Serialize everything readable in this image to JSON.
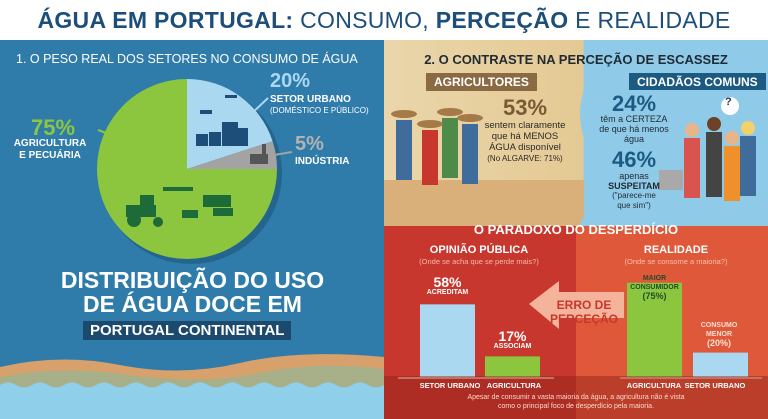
{
  "header": {
    "title_bold1": "ÁGUA EM PORTUGAL:",
    "title_light1": " CONSUMO,",
    "title_bold2": " PERCEÇÃO",
    "title_light2": " E REALIDADE"
  },
  "section1": {
    "heading": "1. O PESO REAL DOS SETORES NO CONSUMO DE ÁGUA",
    "urban": {
      "pct": "20%",
      "label": "SETOR URBANO",
      "sub": "(DOMÉSTICO E PÚBLICO)"
    },
    "industry": {
      "pct": "5%",
      "label": "INDÚSTRIA"
    },
    "agriculture": {
      "pct": "75%",
      "label1": "AGRICULTURA",
      "label2": "E PECUÁRIA"
    },
    "title1": "DISTRIBUIÇÃO DO USO",
    "title2": "DE ÁGUA DOCE EM",
    "title3": "PORTUGAL CONTINENTAL"
  },
  "section2": {
    "heading": "2. O CONTRASTE NA PERCEÇÃO DE ESCASSEZ",
    "farmers": {
      "label": "AGRICULTORES",
      "pct": "53%",
      "t1": "sentem claramente",
      "t2": "que há MENOS",
      "t3": "ÁGUA disponível",
      "note": "(No ALGARVE: 71%)"
    },
    "citizens": {
      "label": "CIDADÃOS COMUNS",
      "pct1": "24%",
      "t1": "têm a CERTEZA",
      "t2": "de que há menos",
      "t3": "água",
      "pct2": "46%",
      "t4": "apenas",
      "t5": "SUSPEITAM",
      "t6": "(\"parece-me",
      "t7": "que sim\")",
      "question": "?"
    }
  },
  "section3": {
    "heading": "O PARADOXO DO DESPERDÍCIO",
    "opinion": {
      "title": "OPINIÃO PÚBLICA",
      "sub": "(Onde se acha que se perde mais?)",
      "urban_pct": "58%",
      "urban_note": "ACREDITAM",
      "agri_pct": "17%",
      "agri_note": "ASSOCIAM",
      "x1": "SETOR URBANO",
      "x2": "AGRICULTURA"
    },
    "arrow": {
      "l1": "ERRO DE",
      "l2": "PERCEÇÃO"
    },
    "reality": {
      "title": "REALIDADE",
      "sub": "(Onde se consome a maioria?)",
      "agri_l1": "MAIOR",
      "agri_l2": "CONSUMIDOR",
      "agri_l3": "(75%)",
      "urban_l1": "CONSUMO",
      "urban_l2": "MENOR",
      "urban_l3": "(20%)",
      "x1": "AGRICULTURA",
      "x2": "SETOR URBANO"
    },
    "caption1": "Apesar de consumir a vasta maioria da água, a agricultura não é vista",
    "caption2": "como o principal foco de desperdício pela maioria."
  },
  "chart_data": [
    {
      "type": "pie",
      "categories": [
        "SETOR URBANO",
        "INDÚSTRIA",
        "AGRICULTURA E PECUÁRIA"
      ],
      "values": [
        20,
        5,
        75
      ],
      "colors": [
        "#a9d8f0",
        "#a3a3a3",
        "#8cc63f"
      ]
    },
    {
      "type": "bar",
      "title": "OPINIÃO PÚBLICA",
      "categories": [
        "SETOR URBANO",
        "AGRICULTURA"
      ],
      "values": [
        58,
        17
      ]
    },
    {
      "type": "bar",
      "title": "REALIDADE",
      "categories": [
        "AGRICULTURA",
        "SETOR URBANO"
      ],
      "values": [
        75,
        20
      ]
    }
  ]
}
